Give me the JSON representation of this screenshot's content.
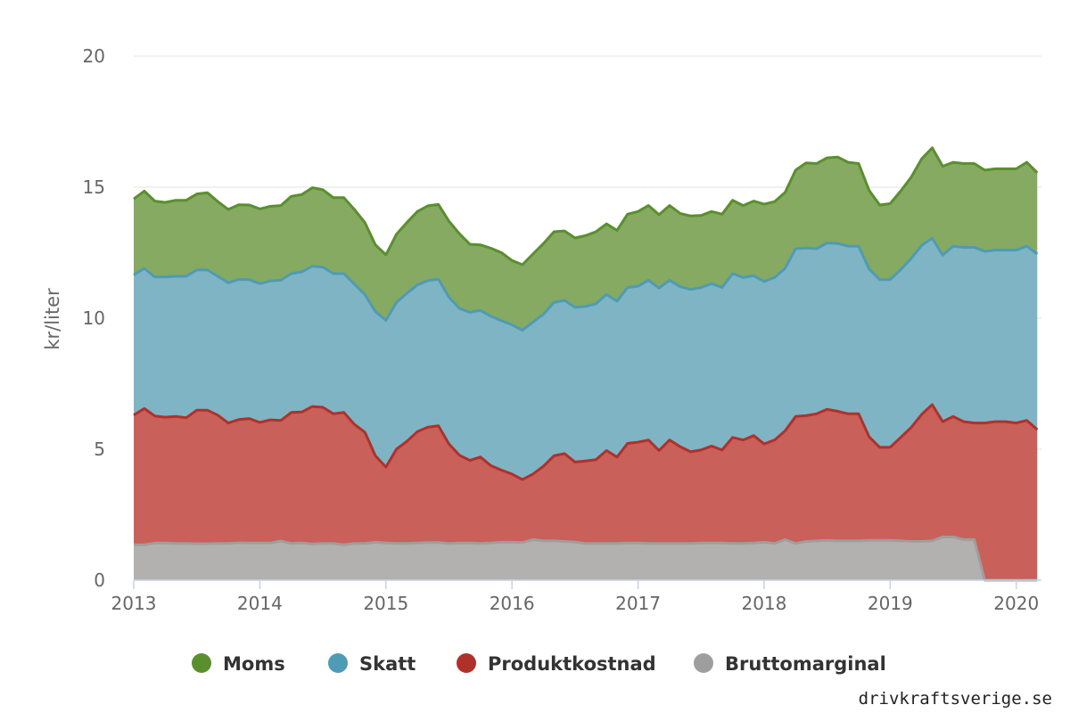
{
  "chart_data": {
    "type": "area",
    "stacked": true,
    "title": "",
    "xlabel": "",
    "ylabel": "kr/liter",
    "ylim": [
      0,
      20
    ],
    "yticks": [
      0,
      5,
      10,
      15,
      20
    ],
    "xlim": [
      2013.0,
      2020.2
    ],
    "xticks": [
      "2013",
      "2014",
      "2015",
      "2016",
      "2017",
      "2018",
      "2019",
      "2020"
    ],
    "grid": true,
    "legend_position": "bottom",
    "x_start": "2013-01",
    "x_step_months": 1,
    "series": [
      {
        "name": "Bruttomarginal",
        "color": "#9e9e9e",
        "fill_color": "#b3b1af",
        "values": [
          1.35,
          1.35,
          1.42,
          1.42,
          1.4,
          1.4,
          1.39,
          1.39,
          1.4,
          1.4,
          1.43,
          1.42,
          1.42,
          1.42,
          1.5,
          1.4,
          1.42,
          1.38,
          1.4,
          1.4,
          1.35,
          1.4,
          1.4,
          1.45,
          1.42,
          1.4,
          1.4,
          1.42,
          1.44,
          1.44,
          1.4,
          1.42,
          1.42,
          1.4,
          1.42,
          1.45,
          1.45,
          1.44,
          1.55,
          1.5,
          1.5,
          1.48,
          1.46,
          1.4,
          1.4,
          1.4,
          1.4,
          1.42,
          1.42,
          1.4,
          1.4,
          1.4,
          1.4,
          1.4,
          1.42,
          1.42,
          1.42,
          1.4,
          1.4,
          1.42,
          1.45,
          1.4,
          1.55,
          1.4,
          1.48,
          1.5,
          1.52,
          1.5,
          1.5,
          1.5,
          1.52,
          1.52,
          1.52,
          1.5,
          1.48,
          1.48,
          1.5,
          1.65,
          1.65,
          1.55,
          1.55,
          0,
          0,
          0,
          0,
          0,
          0
        ]
      },
      {
        "name": "Produktkostnad",
        "color": "#b0312a",
        "fill_color": "#c9605a",
        "values": [
          4.95,
          5.2,
          4.85,
          4.8,
          4.85,
          4.8,
          5.1,
          5.1,
          4.9,
          4.6,
          4.7,
          4.75,
          4.6,
          4.7,
          4.6,
          5.0,
          5.0,
          5.25,
          5.2,
          4.95,
          5.05,
          4.55,
          4.25,
          3.3,
          2.9,
          3.6,
          3.9,
          4.25,
          4.4,
          4.45,
          3.8,
          3.35,
          3.15,
          3.3,
          2.95,
          2.75,
          2.6,
          2.4,
          2.5,
          2.85,
          3.25,
          3.35,
          3.05,
          3.15,
          3.2,
          3.55,
          3.3,
          3.8,
          3.85,
          3.95,
          3.55,
          3.95,
          3.7,
          3.5,
          3.55,
          3.7,
          3.55,
          4.05,
          3.95,
          4.1,
          3.75,
          3.95,
          4.15,
          4.85,
          4.8,
          4.85,
          5.0,
          4.95,
          4.85,
          4.85,
          3.95,
          3.55,
          3.55,
          3.95,
          4.35,
          4.85,
          5.2,
          4.4,
          4.6,
          4.5,
          4.45,
          6.0,
          6.05,
          6.05,
          6.0,
          6.1,
          5.75
        ]
      },
      {
        "name": "Skatt",
        "color": "#4e9bb5",
        "fill_color": "#7fb4c5",
        "values": [
          5.35,
          5.35,
          5.3,
          5.35,
          5.35,
          5.4,
          5.35,
          5.35,
          5.3,
          5.35,
          5.35,
          5.3,
          5.3,
          5.3,
          5.35,
          5.3,
          5.35,
          5.35,
          5.35,
          5.35,
          5.3,
          5.35,
          5.25,
          5.5,
          5.6,
          5.6,
          5.65,
          5.6,
          5.6,
          5.6,
          5.6,
          5.6,
          5.65,
          5.6,
          5.7,
          5.7,
          5.7,
          5.7,
          5.8,
          5.8,
          5.85,
          5.85,
          5.9,
          5.9,
          5.95,
          5.95,
          5.95,
          5.95,
          5.95,
          6.1,
          6.2,
          6.1,
          6.1,
          6.2,
          6.2,
          6.2,
          6.2,
          6.25,
          6.2,
          6.1,
          6.2,
          6.2,
          6.2,
          6.4,
          6.4,
          6.3,
          6.35,
          6.4,
          6.4,
          6.4,
          6.4,
          6.4,
          6.4,
          6.4,
          6.45,
          6.45,
          6.35,
          6.35,
          6.5,
          6.65,
          6.7,
          6.55,
          6.55,
          6.55,
          6.6,
          6.65,
          6.7
        ]
      },
      {
        "name": "Moms",
        "color": "#5a8f2e",
        "fill_color": "#86aa62",
        "values": [
          2.9,
          2.95,
          2.9,
          2.85,
          2.9,
          2.9,
          2.9,
          2.95,
          2.85,
          2.8,
          2.85,
          2.85,
          2.85,
          2.85,
          2.85,
          2.95,
          2.95,
          3.0,
          2.95,
          2.9,
          2.9,
          2.85,
          2.75,
          2.55,
          2.5,
          2.6,
          2.7,
          2.8,
          2.85,
          2.85,
          2.9,
          2.85,
          2.6,
          2.5,
          2.6,
          2.6,
          2.45,
          2.5,
          2.6,
          2.7,
          2.7,
          2.65,
          2.65,
          2.7,
          2.75,
          2.7,
          2.7,
          2.8,
          2.85,
          2.85,
          2.8,
          2.85,
          2.8,
          2.8,
          2.75,
          2.75,
          2.8,
          2.8,
          2.75,
          2.85,
          2.95,
          2.9,
          2.9,
          3.0,
          3.25,
          3.25,
          3.25,
          3.3,
          3.2,
          3.15,
          3.0,
          2.85,
          2.9,
          3.0,
          3.1,
          3.3,
          3.45,
          3.4,
          3.2,
          3.2,
          3.2,
          3.1,
          3.1,
          3.1,
          3.1,
          3.2,
          3.1
        ]
      }
    ]
  },
  "legend": {
    "items": [
      {
        "label": "Moms",
        "color": "#5a8f2e"
      },
      {
        "label": "Skatt",
        "color": "#4e9bb5"
      },
      {
        "label": "Produktkostnad",
        "color": "#b0312a"
      },
      {
        "label": "Bruttomarginal",
        "color": "#9e9e9e"
      }
    ]
  },
  "credit": {
    "text": "drivkraftsverige.se"
  }
}
